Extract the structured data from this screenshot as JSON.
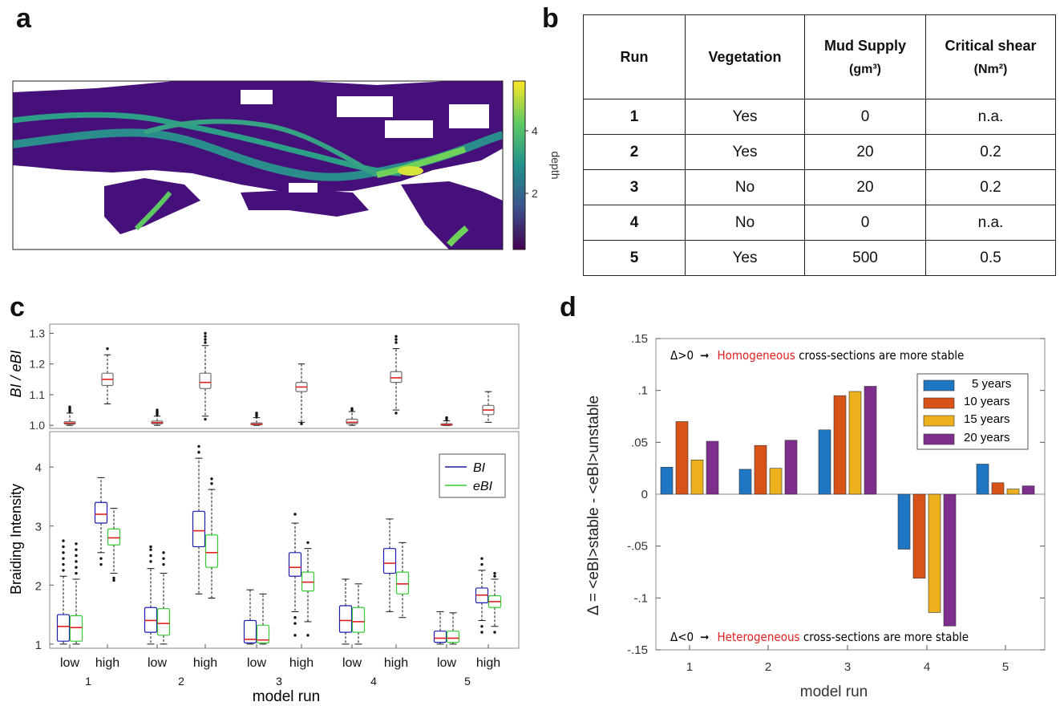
{
  "panels": {
    "a": {
      "label": "a",
      "colorbar": {
        "label": "depth",
        "ticks": [
          2,
          4
        ],
        "colors": [
          "#440154",
          "#3b528b",
          "#21918c",
          "#5ec962",
          "#fde725"
        ]
      }
    },
    "b": {
      "label": "b",
      "table": {
        "headers": {
          "run": "Run",
          "vegetation": "Vegetation",
          "mud_supply": "Mud Supply",
          "mud_supply_unit": "(gm³)",
          "critical_shear": "Critical shear",
          "critical_shear_unit": "(Nm²)"
        },
        "rows": [
          {
            "run": "1",
            "vegetation": "Yes",
            "mud": "0",
            "shear": "n.a."
          },
          {
            "run": "2",
            "vegetation": "Yes",
            "mud": "20",
            "shear": "0.2"
          },
          {
            "run": "3",
            "vegetation": "No",
            "mud": "20",
            "shear": "0.2"
          },
          {
            "run": "4",
            "vegetation": "No",
            "mud": "0",
            "shear": "n.a."
          },
          {
            "run": "5",
            "vegetation": "Yes",
            "mud": "500",
            "shear": "0.5"
          }
        ]
      }
    },
    "c": {
      "label": "c"
    },
    "d": {
      "label": "d"
    }
  },
  "chart_data": [
    {
      "type": "box",
      "panel": "c-top",
      "ylabel": "BI / eBI",
      "ylim": [
        0.99,
        1.33
      ],
      "yticks": [
        1.0,
        1.1,
        1.2,
        1.3
      ],
      "categories": [
        "low",
        "high",
        "low",
        "high",
        "low",
        "high",
        "low",
        "high",
        "low",
        "high"
      ],
      "boxes": [
        {
          "run": 1,
          "group": "low",
          "q1": 1.004,
          "median": 1.007,
          "q3": 1.012,
          "whisker_low": 1.0,
          "whisker_high": 1.04,
          "outliers": [
            1.045,
            1.05,
            1.055,
            1.06
          ]
        },
        {
          "run": 1,
          "group": "high",
          "q1": 1.13,
          "median": 1.15,
          "q3": 1.17,
          "whisker_low": 1.07,
          "whisker_high": 1.23,
          "outliers": [
            1.25
          ]
        },
        {
          "run": 2,
          "group": "low",
          "q1": 1.005,
          "median": 1.009,
          "q3": 1.014,
          "whisker_low": 1.0,
          "whisker_high": 1.03,
          "outliers": [
            1.035,
            1.04,
            1.045,
            1.05
          ]
        },
        {
          "run": 2,
          "group": "high",
          "q1": 1.12,
          "median": 1.14,
          "q3": 1.17,
          "whisker_low": 1.03,
          "whisker_high": 1.26,
          "outliers": [
            1.27,
            1.28,
            1.29,
            1.3,
            1.02
          ]
        },
        {
          "run": 3,
          "group": "low",
          "q1": 1.002,
          "median": 1.004,
          "q3": 1.008,
          "whisker_low": 1.0,
          "whisker_high": 1.025,
          "outliers": [
            1.03,
            1.035,
            1.04
          ]
        },
        {
          "run": 3,
          "group": "high",
          "q1": 1.11,
          "median": 1.125,
          "q3": 1.14,
          "whisker_low": 1.01,
          "whisker_high": 1.2,
          "outliers": [
            1.005
          ]
        },
        {
          "run": 4,
          "group": "low",
          "q1": 1.005,
          "median": 1.01,
          "q3": 1.02,
          "whisker_low": 1.0,
          "whisker_high": 1.045,
          "outliers": [
            1.05,
            1.055
          ]
        },
        {
          "run": 4,
          "group": "high",
          "q1": 1.14,
          "median": 1.155,
          "q3": 1.175,
          "whisker_low": 1.05,
          "whisker_high": 1.25,
          "outliers": [
            1.27,
            1.28,
            1.29,
            1.04
          ]
        },
        {
          "run": 5,
          "group": "low",
          "q1": 1.0,
          "median": 1.002,
          "q3": 1.005,
          "whisker_low": 0.999,
          "whisker_high": 1.015,
          "outliers": [
            1.02,
            1.025
          ]
        },
        {
          "run": 5,
          "group": "high",
          "q1": 1.035,
          "median": 1.05,
          "q3": 1.065,
          "whisker_low": 1.01,
          "whisker_high": 1.11,
          "outliers": []
        }
      ]
    },
    {
      "type": "box",
      "panel": "c-bottom",
      "xlabel": "model run",
      "ylabel": "Braiding Intensity",
      "ylim": [
        0.93,
        4.6
      ],
      "yticks": [
        1,
        2,
        3,
        4
      ],
      "runs": [
        "1",
        "2",
        "3",
        "4",
        "5"
      ],
      "categories": [
        "low",
        "high",
        "low",
        "high",
        "low",
        "high",
        "low",
        "high",
        "low",
        "high"
      ],
      "legend": {
        "position": "top-right",
        "entries": [
          {
            "name": "BI",
            "color": "#1c1cb4"
          },
          {
            "name": "eBI",
            "color": "#33cc33"
          }
        ]
      },
      "series": [
        {
          "name": "BI",
          "color": "#1c1cb4",
          "boxes": [
            {
              "run": 1,
              "group": "low",
              "q1": 1.05,
              "median": 1.3,
              "q3": 1.5,
              "whisker_low": 1.0,
              "whisker_high": 2.15,
              "outliers": [
                2.25,
                2.35,
                2.45,
                2.55,
                2.65,
                2.75
              ]
            },
            {
              "run": 1,
              "group": "high",
              "q1": 3.05,
              "median": 3.2,
              "q3": 3.4,
              "whisker_low": 2.55,
              "whisker_high": 3.82,
              "outliers": [
                2.45,
                2.35
              ]
            },
            {
              "run": 2,
              "group": "low",
              "q1": 1.2,
              "median": 1.4,
              "q3": 1.62,
              "whisker_low": 1.0,
              "whisker_high": 2.28,
              "outliers": [
                2.4,
                2.5,
                2.6,
                2.65
              ]
            },
            {
              "run": 2,
              "group": "high",
              "q1": 2.65,
              "median": 2.92,
              "q3": 3.25,
              "whisker_low": 1.85,
              "whisker_high": 4.15,
              "outliers": [
                4.25,
                4.35
              ]
            },
            {
              "run": 3,
              "group": "low",
              "q1": 1.02,
              "median": 1.08,
              "q3": 1.4,
              "whisker_low": 1.0,
              "whisker_high": 1.92,
              "outliers": []
            },
            {
              "run": 3,
              "group": "high",
              "q1": 2.15,
              "median": 2.3,
              "q3": 2.55,
              "whisker_low": 1.55,
              "whisker_high": 3.05,
              "outliers": [
                3.2,
                1.45,
                1.35,
                1.15
              ]
            },
            {
              "run": 4,
              "group": "low",
              "q1": 1.2,
              "median": 1.4,
              "q3": 1.65,
              "whisker_low": 1.0,
              "whisker_high": 2.1,
              "outliers": []
            },
            {
              "run": 4,
              "group": "high",
              "q1": 2.2,
              "median": 2.37,
              "q3": 2.62,
              "whisker_low": 1.55,
              "whisker_high": 3.12,
              "outliers": []
            },
            {
              "run": 5,
              "group": "low",
              "q1": 1.03,
              "median": 1.1,
              "q3": 1.22,
              "whisker_low": 1.0,
              "whisker_high": 1.55,
              "outliers": []
            },
            {
              "run": 5,
              "group": "high",
              "q1": 1.7,
              "median": 1.83,
              "q3": 1.95,
              "whisker_low": 1.4,
              "whisker_high": 2.25,
              "outliers": [
                2.35,
                2.45,
                1.3,
                1.2
              ]
            }
          ]
        },
        {
          "name": "eBI",
          "color": "#33cc33",
          "boxes": [
            {
              "run": 1,
              "group": "low",
              "q1": 1.05,
              "median": 1.28,
              "q3": 1.48,
              "whisker_low": 1.0,
              "whisker_high": 2.1,
              "outliers": [
                2.2,
                2.3,
                2.4,
                2.5,
                2.6,
                2.7
              ]
            },
            {
              "run": 1,
              "group": "high",
              "q1": 2.68,
              "median": 2.8,
              "q3": 2.95,
              "whisker_low": 2.2,
              "whisker_high": 3.3,
              "outliers": [
                2.12,
                2.08
              ]
            },
            {
              "run": 2,
              "group": "low",
              "q1": 1.15,
              "median": 1.35,
              "q3": 1.6,
              "whisker_low": 1.0,
              "whisker_high": 2.2,
              "outliers": [
                2.35,
                2.45,
                2.55
              ]
            },
            {
              "run": 2,
              "group": "high",
              "q1": 2.3,
              "median": 2.55,
              "q3": 2.85,
              "whisker_low": 1.78,
              "whisker_high": 3.62,
              "outliers": [
                3.72,
                3.8
              ]
            },
            {
              "run": 3,
              "group": "low",
              "q1": 1.02,
              "median": 1.07,
              "q3": 1.32,
              "whisker_low": 1.0,
              "whisker_high": 1.85,
              "outliers": []
            },
            {
              "run": 3,
              "group": "high",
              "q1": 1.9,
              "median": 2.05,
              "q3": 2.22,
              "whisker_low": 1.38,
              "whisker_high": 2.62,
              "outliers": [
                2.72,
                1.15
              ]
            },
            {
              "run": 4,
              "group": "low",
              "q1": 1.2,
              "median": 1.38,
              "q3": 1.62,
              "whisker_low": 1.0,
              "whisker_high": 2.02,
              "outliers": []
            },
            {
              "run": 4,
              "group": "high",
              "q1": 1.85,
              "median": 2.02,
              "q3": 2.22,
              "whisker_low": 1.45,
              "whisker_high": 2.72,
              "outliers": []
            },
            {
              "run": 5,
              "group": "low",
              "q1": 1.03,
              "median": 1.1,
              "q3": 1.22,
              "whisker_low": 1.0,
              "whisker_high": 1.53,
              "outliers": []
            },
            {
              "run": 5,
              "group": "high",
              "q1": 1.62,
              "median": 1.72,
              "q3": 1.82,
              "whisker_low": 1.3,
              "whisker_high": 2.1,
              "outliers": [
                2.2,
                2.15,
                1.2
              ]
            }
          ]
        }
      ]
    },
    {
      "type": "bar",
      "panel": "d",
      "xlabel": "model run",
      "ylabel": "Δ = <eBI>stable - <eBI>unstable",
      "ylim": [
        -0.15,
        0.15
      ],
      "yticks": [
        -0.15,
        -0.1,
        -0.05,
        0,
        0.05,
        0.1,
        0.15
      ],
      "categories": [
        "1",
        "2",
        "3",
        "4",
        "5"
      ],
      "legend": {
        "position": "top-right"
      },
      "series": [
        {
          "name": "5 years",
          "color": "#1f77c4",
          "values": [
            0.026,
            0.024,
            0.062,
            -0.053,
            0.029
          ]
        },
        {
          "name": "10 years",
          "color": "#d95319",
          "values": [
            0.07,
            0.047,
            0.095,
            -0.081,
            0.011
          ]
        },
        {
          "name": "15 years",
          "color": "#edb120",
          "values": [
            0.033,
            0.025,
            0.099,
            -0.114,
            0.005
          ]
        },
        {
          "name": "20 years",
          "color": "#7e2f8e",
          "values": [
            0.051,
            0.052,
            0.104,
            -0.127,
            0.008
          ]
        }
      ],
      "annotations": {
        "top": {
          "prefix": "Δ>0",
          "arrow": "➞",
          "highlight": "Homogeneous",
          "rest": " cross-sections are more stable"
        },
        "bottom": {
          "prefix": "Δ<0",
          "arrow": "➞",
          "highlight": "Heterogeneous",
          "rest": " cross-sections are more stable"
        }
      }
    }
  ]
}
